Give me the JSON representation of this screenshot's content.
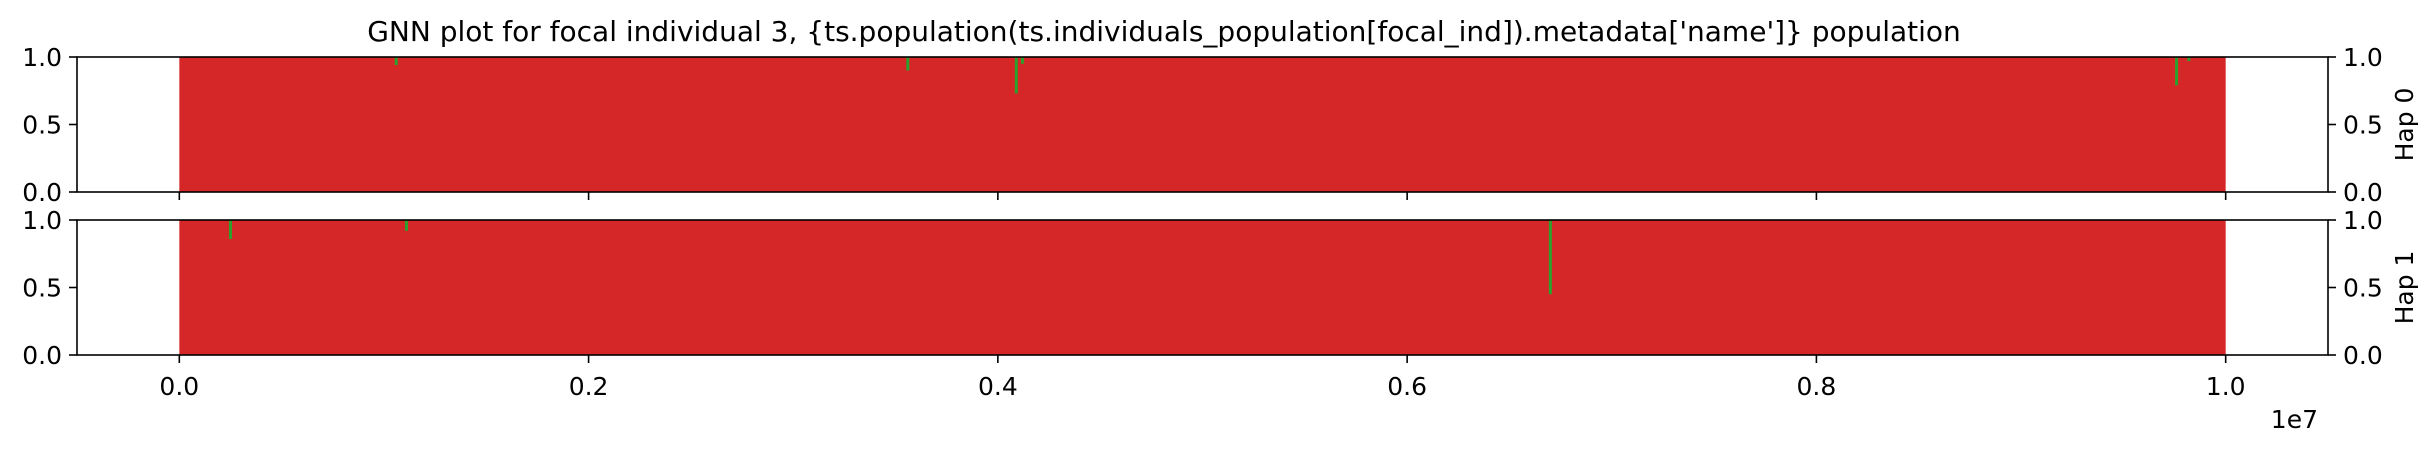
{
  "chart_data": {
    "type": "area",
    "title": "GNN plot for focal individual 3, {ts.population(ts.individuals_population[focal_ind]).metadata['name']} population",
    "x_offset_text": "1e7",
    "x_tick_labels": [
      "0.0",
      "0.2",
      "0.4",
      "0.6",
      "0.8",
      "1.0"
    ],
    "x_ticks": [
      0,
      2000000,
      4000000,
      6000000,
      8000000,
      10000000
    ],
    "xlim": [
      -500000,
      10500000
    ],
    "ylim": [
      0,
      1
    ],
    "grid": false,
    "legend": "none",
    "colors": {
      "red": "#d62728",
      "green": "#2ca02c"
    },
    "panels": [
      {
        "ylabel": "Hap 0",
        "y_ticks": [
          0,
          0.5,
          1
        ],
        "y_tick_labels": [
          "0.0",
          "0.5",
          "1.0"
        ],
        "x_range": [
          0,
          10000000
        ],
        "series_red_fraction": 1.0,
        "green_dips": [
          {
            "x": 1060000,
            "depth": 0.06
          },
          {
            "x": 3560000,
            "depth": 0.1
          },
          {
            "x": 4090000,
            "depth": 0.27
          },
          {
            "x": 4120000,
            "depth": 0.05
          },
          {
            "x": 9760000,
            "depth": 0.21
          },
          {
            "x": 9820000,
            "depth": 0.03
          }
        ]
      },
      {
        "ylabel": "Hap 1",
        "y_ticks": [
          0,
          0.5,
          1
        ],
        "y_tick_labels": [
          "0.0",
          "0.5",
          "1.0"
        ],
        "x_range": [
          0,
          10000000
        ],
        "series_red_fraction": 1.0,
        "green_dips": [
          {
            "x": 250000,
            "depth": 0.14
          },
          {
            "x": 1110000,
            "depth": 0.08
          },
          {
            "x": 6700000,
            "depth": 0.55
          }
        ]
      }
    ]
  }
}
